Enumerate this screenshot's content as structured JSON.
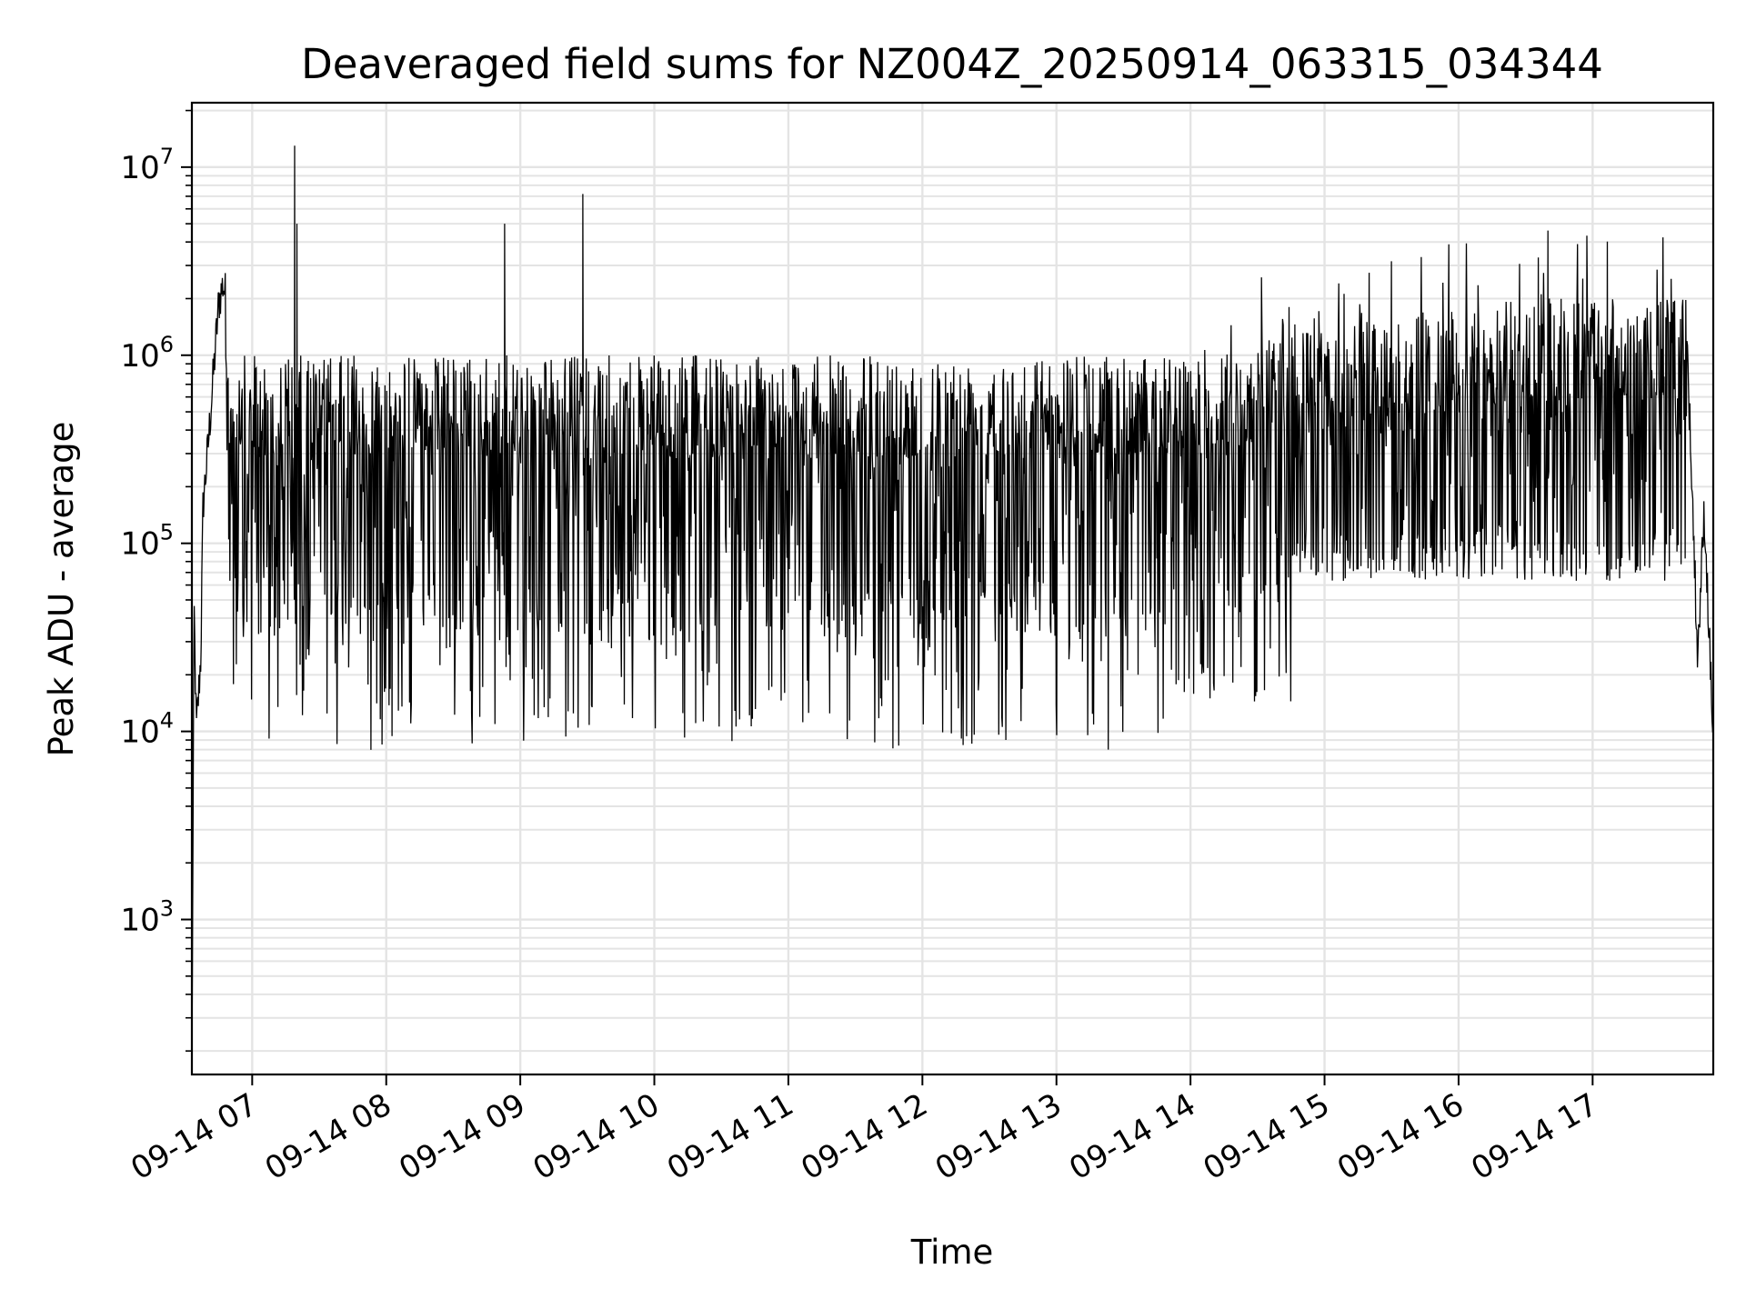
{
  "chart_data": {
    "type": "line",
    "title": "Deaveraged field sums for NZ004Z_20250914_063315_034344",
    "xlabel": "Time",
    "ylabel": "Peak ADU - average",
    "y_scale": "log",
    "x_range": [
      "2025-09-14 06:33",
      "2025-09-14 17:54"
    ],
    "ylim": [
      150,
      22000000
    ],
    "grid": true,
    "grid_color": "#e4e4e4",
    "line_color": "#000000",
    "x_ticks": [
      "09-14 07",
      "09-14 08",
      "09-14 09",
      "09-14 10",
      "09-14 11",
      "09-14 12",
      "09-14 13",
      "09-14 14",
      "09-14 15",
      "09-14 16",
      "09-14 17"
    ],
    "y_tick_values": [
      1000,
      10000,
      100000,
      1000000,
      10000000
    ],
    "y_tick_base": "10",
    "y_tick_exponents": [
      "3",
      "4",
      "5",
      "6",
      "7"
    ],
    "series": [
      {
        "note": "noisy signal; envelope values (peak max / typical / min) sampled over time",
        "points": [
          [
            "2025-09-14 06:33",
            150
          ],
          [
            "2025-09-14 06:34",
            45000
          ],
          [
            "2025-09-14 06:35",
            10000
          ],
          [
            "2025-09-14 06:37",
            25000
          ],
          [
            "2025-09-14 06:38",
            160000
          ],
          [
            "2025-09-14 06:40",
            300000
          ],
          [
            "2025-09-14 06:43",
            900000
          ],
          [
            "2025-09-14 06:45",
            1900000
          ],
          [
            "2025-09-14 06:47",
            2400000
          ],
          [
            "2025-09-14 06:50",
            1600000
          ],
          [
            "2025-09-14 06:55",
            1300000
          ],
          [
            "2025-09-14 07:02",
            1700000
          ],
          [
            "2025-09-14 07:19",
            13000000
          ],
          [
            "2025-09-14 07:20",
            5000000
          ],
          [
            "2025-09-14 07:40",
            1100000
          ],
          [
            "2025-09-14 08:10",
            1000000
          ],
          [
            "2025-09-14 08:46",
            10000
          ],
          [
            "2025-09-14 08:53",
            5000000
          ],
          [
            "2025-09-14 09:28",
            7200000
          ],
          [
            "2025-09-14 10:00",
            1000000
          ],
          [
            "2025-09-14 10:53",
            9800
          ],
          [
            "2025-09-14 11:30",
            900000
          ],
          [
            "2025-09-14 12:00",
            12000
          ],
          [
            "2025-09-14 12:30",
            900000
          ],
          [
            "2025-09-14 13:00",
            1000000
          ],
          [
            "2025-09-14 13:45",
            1000000
          ],
          [
            "2025-09-14 14:15",
            1500000
          ],
          [
            "2025-09-14 14:30",
            1900000
          ],
          [
            "2025-09-14 15:00",
            2500000
          ],
          [
            "2025-09-14 15:46",
            3800000
          ],
          [
            "2025-09-14 16:20",
            3500000
          ],
          [
            "2025-09-14 16:40",
            4600000
          ],
          [
            "2025-09-14 17:00",
            1900000
          ],
          [
            "2025-09-14 17:38",
            2400000
          ],
          [
            "2025-09-14 17:42",
            1400000
          ],
          [
            "2025-09-14 17:44",
            300000
          ],
          [
            "2025-09-14 17:47",
            25000
          ],
          [
            "2025-09-14 17:50",
            150000
          ],
          [
            "2025-09-14 17:54",
            9000
          ]
        ]
      }
    ]
  }
}
